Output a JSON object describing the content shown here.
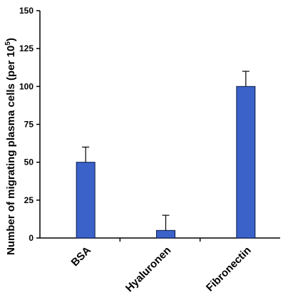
{
  "chart_data": {
    "type": "bar",
    "categories": [
      "BSA",
      "Hyaluronen",
      "Fibronectin"
    ],
    "values": [
      50,
      5,
      100
    ],
    "error_upper": [
      10,
      10,
      10
    ],
    "ylabel": "Number of migrating plasma  cells (per 10",
    "ylabel_superscript": "5",
    "ylabel_close": ")",
    "xlabel": "",
    "title": "",
    "ylim": [
      0,
      150
    ],
    "yticks": [
      0,
      25,
      50,
      75,
      100,
      125,
      150
    ],
    "grid": false,
    "bar_color": "#3a62c9",
    "bar_edge_color": "#0a1a4a"
  }
}
